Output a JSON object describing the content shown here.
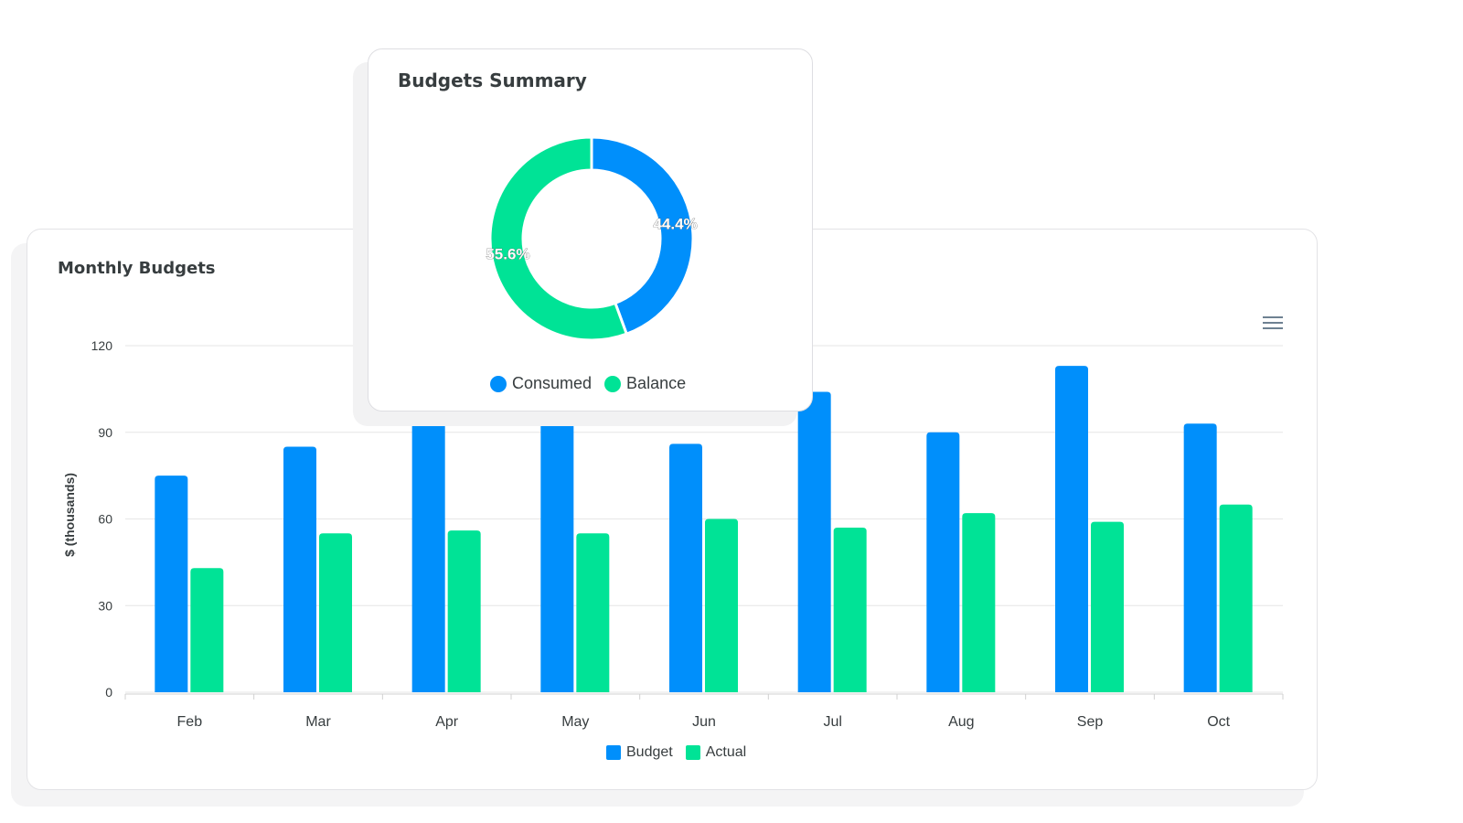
{
  "colors": {
    "budget": "#008ffb",
    "actual": "#00e396"
  },
  "chart_data": [
    {
      "type": "bar",
      "title": "Monthly Budgets",
      "categories": [
        "Feb",
        "Mar",
        "Apr",
        "May",
        "Jun",
        "Jul",
        "Aug",
        "Sep",
        "Oct"
      ],
      "series": [
        {
          "name": "Budget",
          "values": [
            75,
            85,
            100,
            100,
            86,
            104,
            90,
            113,
            93
          ]
        },
        {
          "name": "Actual",
          "values": [
            43,
            55,
            56,
            55,
            60,
            57,
            62,
            59,
            65
          ]
        }
      ],
      "ylabel": "$ (thousands)",
      "ylim": [
        0,
        120
      ],
      "yticks": [
        0,
        30,
        60,
        90,
        120
      ],
      "grid": true,
      "legend": "bottom"
    },
    {
      "type": "pie",
      "title": "Budgets Summary",
      "labels": [
        "Consumed",
        "Balance"
      ],
      "values": [
        44.4,
        55.6
      ],
      "data_labels": [
        "44.4%",
        "55.6%"
      ],
      "donut": true,
      "legend": "bottom"
    }
  ]
}
